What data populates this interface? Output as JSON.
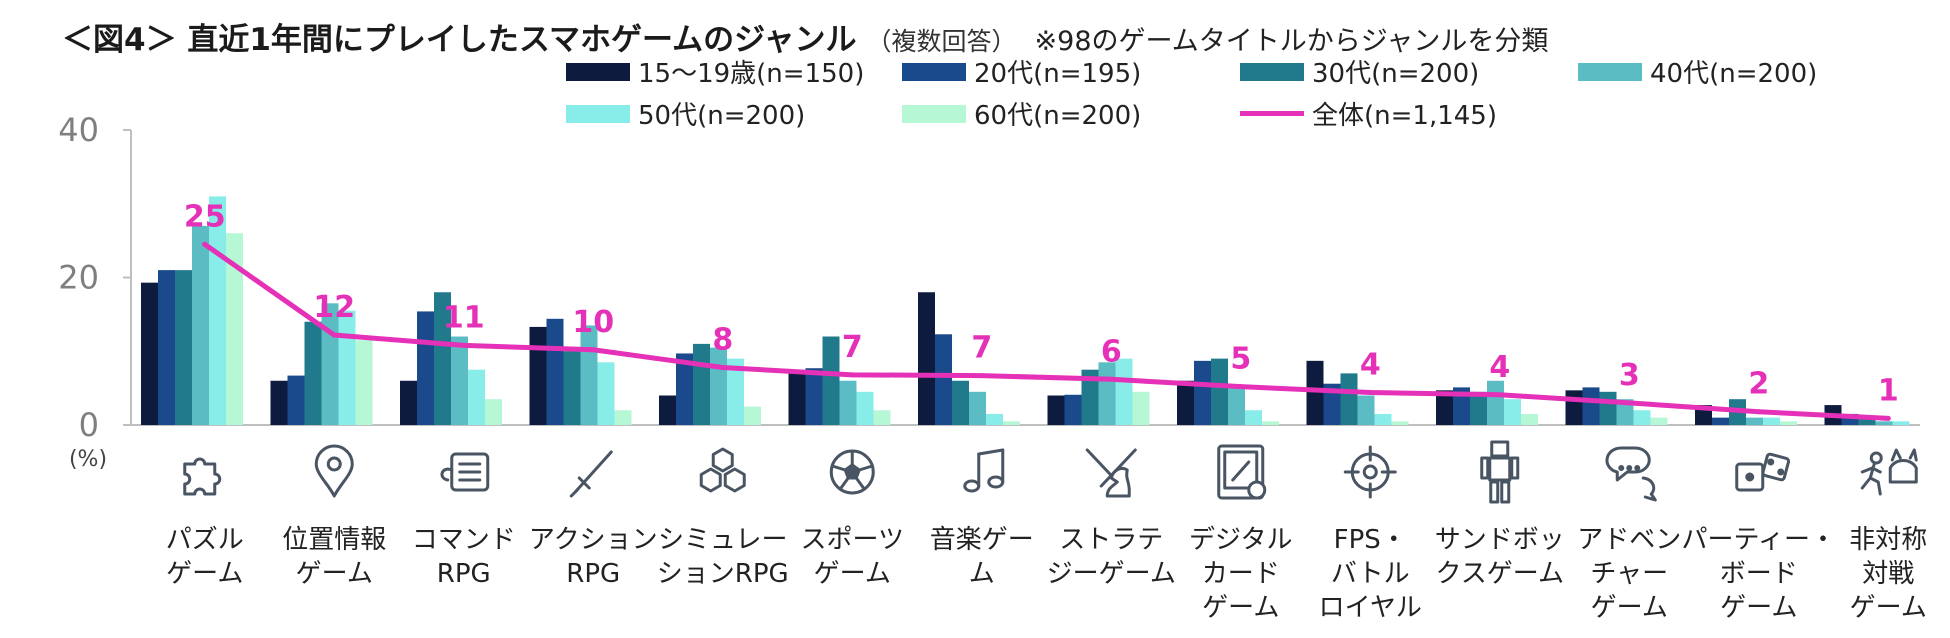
{
  "header": {
    "title": "＜図4＞ 直近1年間にプレイしたスマホゲームのジャンル",
    "subtitle": "（複数回答）",
    "note": "※98のゲームタイトルからジャンルを分類"
  },
  "chart_data": {
    "type": "bar",
    "ylim": [
      0,
      40
    ],
    "yticks": [
      0,
      20,
      40
    ],
    "y_unit_label": "(%)",
    "grid": false,
    "legend_position": "top",
    "categories": [
      [
        "パズル",
        "ゲーム"
      ],
      [
        "位置情報",
        "ゲーム"
      ],
      [
        "コマンド",
        "RPG"
      ],
      [
        "アクション",
        "RPG"
      ],
      [
        "シミュレー",
        "ションRPG"
      ],
      [
        "スポーツ",
        "ゲーム"
      ],
      [
        "音楽ゲー",
        "ム"
      ],
      [
        "ストラテ",
        "ジーゲーム"
      ],
      [
        "デジタル",
        "カード",
        "ゲーム"
      ],
      [
        "FPS・",
        "バトル",
        "ロイヤル"
      ],
      [
        "サンドボッ",
        "クスゲーム"
      ],
      [
        "アドベン",
        "チャー",
        "ゲーム"
      ],
      [
        "パーティー・",
        "ボード",
        "ゲーム"
      ],
      [
        "非対称",
        "対戦",
        "ゲーム"
      ]
    ],
    "icons": [
      "puzzle-icon",
      "location-pin-icon",
      "command-menu-icon",
      "sword-icon",
      "hexagon-icon",
      "soccer-ball-icon",
      "music-note-icon",
      "knight-swords-icon",
      "card-icon",
      "crosshair-icon",
      "block-figure-icon",
      "chat-bubble-icon",
      "dice-icon",
      "runner-icon"
    ],
    "series": [
      {
        "name": "15～19歳(n=150)",
        "color": "#0d1b3e",
        "values": [
          19.3,
          6.0,
          6.0,
          13.3,
          4.0,
          7.3,
          18.0,
          4.0,
          6.0,
          8.7,
          4.7,
          4.7,
          2.7,
          2.7
        ]
      },
      {
        "name": "20代(n=195)",
        "color": "#1b4a8c",
        "values": [
          21.0,
          6.7,
          15.4,
          14.4,
          9.7,
          7.7,
          12.3,
          4.1,
          8.7,
          5.6,
          5.1,
          5.1,
          1.0,
          1.5
        ]
      },
      {
        "name": "30代(n=200)",
        "color": "#217a8c",
        "values": [
          21.0,
          14.0,
          18.0,
          10.0,
          11.0,
          12.0,
          6.0,
          7.5,
          9.0,
          7.0,
          4.5,
          4.5,
          3.5,
          1.0
        ]
      },
      {
        "name": "40代(n=200)",
        "color": "#5bbcc4",
        "values": [
          27.0,
          16.5,
          12.0,
          13.5,
          10.5,
          6.0,
          4.5,
          8.5,
          5.0,
          4.0,
          6.0,
          3.5,
          1.0,
          0.5
        ]
      },
      {
        "name": "50代(n=200)",
        "color": "#88ece8",
        "values": [
          31.0,
          15.5,
          7.5,
          8.5,
          9.0,
          4.5,
          1.5,
          9.0,
          2.0,
          1.5,
          3.5,
          2.0,
          1.0,
          0.5
        ]
      },
      {
        "name": "60代(n=200)",
        "color": "#b6f7d6",
        "values": [
          26.0,
          11.5,
          3.5,
          2.0,
          2.5,
          2.0,
          0.5,
          4.5,
          0.5,
          0.5,
          1.5,
          1.0,
          0.5,
          0.0
        ]
      }
    ],
    "total_series": {
      "name": "全体(n=1,145)",
      "color": "#e530b8",
      "values": [
        24.5,
        12.2,
        10.8,
        10.2,
        7.8,
        6.8,
        6.7,
        6.2,
        5.2,
        4.4,
        4.1,
        3.0,
        1.8,
        0.9
      ],
      "labels": [
        "25",
        "12",
        "11",
        "10",
        "8",
        "7",
        "7",
        "6",
        "5",
        "4",
        "4",
        "3",
        "2",
        "1"
      ]
    }
  }
}
